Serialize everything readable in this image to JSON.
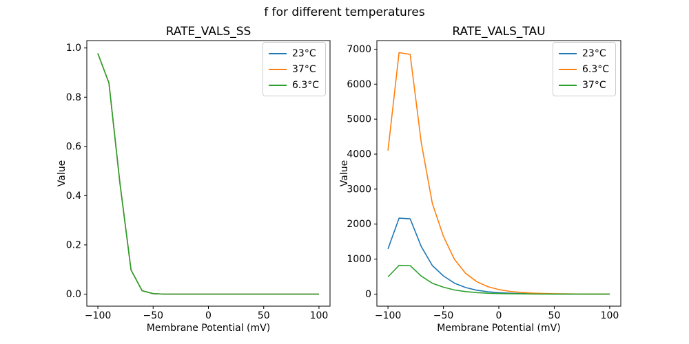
{
  "figure": {
    "suptitle": "f for different temperatures",
    "background_color": "#ffffff",
    "text_color": "#000000"
  },
  "chart_data": [
    {
      "type": "line",
      "title": "RATE_VALS_SS",
      "xlabel": "Membrane Potential (mV)",
      "ylabel": "Value",
      "x": [
        -100,
        -90,
        -80,
        -70,
        -60,
        -50,
        -40,
        -30,
        -20,
        -10,
        0,
        10,
        20,
        30,
        40,
        50,
        60,
        70,
        80,
        90,
        100
      ],
      "series": [
        {
          "name": "23°C",
          "color": "#1f77b4",
          "values": [
            0.978,
            0.858,
            0.45,
            0.098,
            0.014,
            0.002,
            0,
            0,
            0,
            0,
            0,
            0,
            0,
            0,
            0,
            0,
            0,
            0,
            0,
            0,
            0
          ]
        },
        {
          "name": "37°C",
          "color": "#ff7f0e",
          "values": [
            0.978,
            0.858,
            0.45,
            0.098,
            0.014,
            0.002,
            0,
            0,
            0,
            0,
            0,
            0,
            0,
            0,
            0,
            0,
            0,
            0,
            0,
            0,
            0
          ]
        },
        {
          "name": "6.3°C",
          "color": "#2ca02c",
          "values": [
            0.978,
            0.858,
            0.45,
            0.098,
            0.014,
            0.002,
            0,
            0,
            0,
            0,
            0,
            0,
            0,
            0,
            0,
            0,
            0,
            0,
            0,
            0,
            0
          ]
        }
      ],
      "xlim": [
        -110,
        110
      ],
      "ylim": [
        -0.049,
        1.03
      ],
      "xticks": {
        "values": [
          -100,
          -50,
          0,
          50,
          100
        ],
        "labels": [
          "−100",
          "−50",
          "0",
          "50",
          "100"
        ]
      },
      "yticks": {
        "values": [
          0,
          0.2,
          0.4,
          0.6,
          0.8,
          1.0
        ],
        "labels": [
          "0.0",
          "0.2",
          "0.4",
          "0.6",
          "0.8",
          "1.0"
        ]
      },
      "legend_position": "upper right",
      "grid": false
    },
    {
      "type": "line",
      "title": "RATE_VALS_TAU",
      "xlabel": "Membrane Potential (mV)",
      "ylabel": "Value",
      "x": [
        -100,
        -90,
        -80,
        -70,
        -60,
        -50,
        -40,
        -30,
        -20,
        -10,
        0,
        10,
        20,
        30,
        40,
        50,
        60,
        70,
        80,
        90,
        100
      ],
      "series": [
        {
          "name": "23°C",
          "color": "#1f77b4",
          "values": [
            1290,
            2170,
            2150,
            1360,
            815,
            520,
            312,
            187,
            112,
            67,
            40,
            24,
            15,
            9,
            5,
            3,
            2,
            1,
            1,
            1,
            1
          ]
        },
        {
          "name": "6.3°C",
          "color": "#ff7f0e",
          "values": [
            4100,
            6900,
            6850,
            4330,
            2590,
            1655,
            992,
            595,
            357,
            214,
            128,
            77,
            46,
            28,
            17,
            10,
            6,
            4,
            2,
            2,
            2
          ]
        },
        {
          "name": "37°C",
          "color": "#2ca02c",
          "values": [
            490,
            822,
            815,
            515,
            309,
            197,
            118,
            71,
            42,
            25,
            15,
            9,
            6,
            3,
            2,
            1,
            1,
            1,
            1,
            1,
            1
          ]
        }
      ],
      "xlim": [
        -110,
        110
      ],
      "ylim": [
        -345,
        7245
      ],
      "xticks": {
        "values": [
          -100,
          -50,
          0,
          50,
          100
        ],
        "labels": [
          "−100",
          "−50",
          "0",
          "50",
          "100"
        ]
      },
      "yticks": {
        "values": [
          0,
          1000,
          2000,
          3000,
          4000,
          5000,
          6000,
          7000
        ],
        "labels": [
          "0",
          "1000",
          "2000",
          "3000",
          "4000",
          "5000",
          "6000",
          "7000"
        ]
      },
      "legend_position": "upper right",
      "grid": false
    }
  ]
}
